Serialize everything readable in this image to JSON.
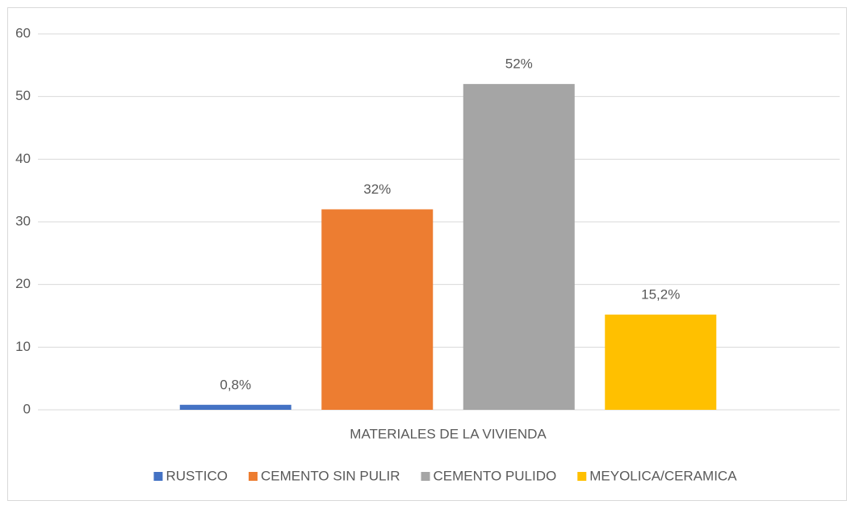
{
  "chart_data": {
    "type": "bar",
    "categories": [
      "MATERIALES DE LA VIVIENDA"
    ],
    "series": [
      {
        "name": "RUSTICO",
        "color": "#4472c4",
        "values": [
          0.8
        ],
        "value_labels": [
          "0,8%"
        ]
      },
      {
        "name": "CEMENTO SIN PULIR",
        "color": "#ed7d31",
        "values": [
          32
        ],
        "value_labels": [
          "32%"
        ]
      },
      {
        "name": "CEMENTO PULIDO",
        "color": "#a5a5a5",
        "values": [
          52
        ],
        "value_labels": [
          "52%"
        ]
      },
      {
        "name": "MEYOLICA/CERAMICA",
        "color": "#ffc000",
        "values": [
          15.2
        ],
        "value_labels": [
          "15,2%"
        ]
      }
    ],
    "ylim": [
      0,
      60
    ],
    "yticks": [
      0,
      10,
      20,
      30,
      40,
      50,
      60
    ],
    "grid": true,
    "legend": "bottom"
  }
}
